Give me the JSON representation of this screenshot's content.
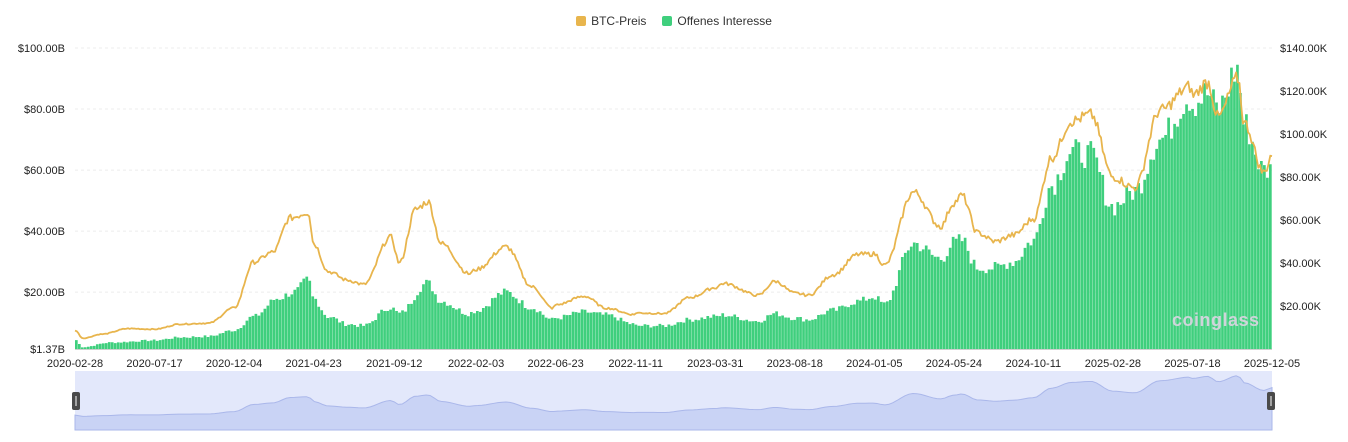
{
  "chart_data": {
    "type": "area",
    "legend": {
      "price_label": "BTC-Preis",
      "oi_label": "Offenes Interesse",
      "price_color": "#E8B54D",
      "oi_color": "#3FCF7D",
      "placement": "top-center"
    },
    "left_axis": {
      "ticks": [
        1.37,
        20,
        40,
        60,
        80,
        100
      ],
      "tick_labels": [
        "$1.37B",
        "$20.00B",
        "$40.00B",
        "$60.00B",
        "$80.00B",
        "$100.00B"
      ],
      "range": [
        1.37,
        100
      ],
      "unit": "USD billions"
    },
    "right_axis": {
      "ticks": [
        20,
        40,
        60,
        80,
        100,
        120,
        140
      ],
      "tick_labels": [
        "$20.00K",
        "$40.00K",
        "$60.00K",
        "$80.00K",
        "$100.00K",
        "$120.00K",
        "$140.00K"
      ],
      "range": [
        0,
        140
      ],
      "unit": "USD thousands"
    },
    "x_tick_labels": [
      "2020-02-28",
      "2020-07-17",
      "2020-12-04",
      "2021-04-23",
      "2021-09-12",
      "2022-02-03",
      "2022-06-23",
      "2022-11-11",
      "2023-03-31",
      "2023-08-18",
      "2024-01-05",
      "2024-05-24",
      "2024-10-11",
      "2025-02-28",
      "2025-07-18",
      "2025-12-05"
    ],
    "x_range": [
      "2020-02-28",
      "2025-12-05"
    ],
    "grid": true,
    "watermark": "coinglass",
    "series": [
      {
        "name": "BTC-Preis",
        "axis": "right",
        "kind": "line",
        "points": [
          [
            "2020-02-28",
            8.7
          ],
          [
            "2020-03-13",
            5.0
          ],
          [
            "2020-04-15",
            6.9
          ],
          [
            "2020-06-01",
            9.5
          ],
          [
            "2020-07-17",
            9.2
          ],
          [
            "2020-09-01",
            11.6
          ],
          [
            "2020-10-20",
            12.0
          ],
          [
            "2020-12-04",
            19.1
          ],
          [
            "2021-01-08",
            40.5
          ],
          [
            "2021-02-10",
            45.0
          ],
          [
            "2021-03-13",
            61.0
          ],
          [
            "2021-04-14",
            63.5
          ],
          [
            "2021-04-23",
            49.0
          ],
          [
            "2021-05-19",
            36.0
          ],
          [
            "2021-06-22",
            32.0
          ],
          [
            "2021-07-20",
            30.0
          ],
          [
            "2021-09-06",
            52.0
          ],
          [
            "2021-09-21",
            40.0
          ],
          [
            "2021-10-20",
            65.0
          ],
          [
            "2021-11-10",
            68.5
          ],
          [
            "2021-12-04",
            49.0
          ],
          [
            "2022-01-22",
            35.0
          ],
          [
            "2022-02-03",
            37.0
          ],
          [
            "2022-03-28",
            47.5
          ],
          [
            "2022-05-12",
            29.0
          ],
          [
            "2022-06-18",
            19.0
          ],
          [
            "2022-06-23",
            20.5
          ],
          [
            "2022-08-13",
            24.5
          ],
          [
            "2022-09-20",
            19.0
          ],
          [
            "2022-11-09",
            16.0
          ],
          [
            "2022-11-11",
            16.8
          ],
          [
            "2022-12-31",
            16.5
          ],
          [
            "2023-02-15",
            24.0
          ],
          [
            "2023-03-31",
            28.5
          ],
          [
            "2023-04-14",
            30.5
          ],
          [
            "2023-06-15",
            25.0
          ],
          [
            "2023-07-14",
            31.5
          ],
          [
            "2023-08-18",
            26.0
          ],
          [
            "2023-09-11",
            25.0
          ],
          [
            "2023-10-24",
            34.5
          ],
          [
            "2023-12-08",
            44.0
          ],
          [
            "2024-01-05",
            44.2
          ],
          [
            "2024-01-23",
            39.0
          ],
          [
            "2024-03-14",
            73.0
          ],
          [
            "2024-05-01",
            57.0
          ],
          [
            "2024-05-24",
            68.0
          ],
          [
            "2024-06-07",
            71.5
          ],
          [
            "2024-07-05",
            54.0
          ],
          [
            "2024-08-05",
            50.0
          ],
          [
            "2024-09-06",
            53.0
          ],
          [
            "2024-10-11",
            60.5
          ],
          [
            "2024-11-12",
            89.0
          ],
          [
            "2024-12-17",
            106.0
          ],
          [
            "2025-01-20",
            109.0
          ],
          [
            "2025-02-28",
            80.0
          ],
          [
            "2025-04-07",
            75.0
          ],
          [
            "2025-05-22",
            111.0
          ],
          [
            "2025-07-14",
            122.0
          ],
          [
            "2025-07-18",
            118.0
          ],
          [
            "2025-08-14",
            124.0
          ],
          [
            "2025-09-01",
            108.0
          ],
          [
            "2025-10-06",
            126.0
          ],
          [
            "2025-10-17",
            105.0
          ],
          [
            "2025-11-21",
            82.0
          ],
          [
            "2025-12-05",
            90.5
          ]
        ]
      },
      {
        "name": "Offenes Interesse",
        "axis": "left",
        "kind": "bar-area",
        "points": [
          [
            "2020-02-28",
            4.5
          ],
          [
            "2020-03-13",
            2.0
          ],
          [
            "2020-05-01",
            3.5
          ],
          [
            "2020-07-17",
            4.2
          ],
          [
            "2020-09-01",
            5.2
          ],
          [
            "2020-10-20",
            5.5
          ],
          [
            "2020-12-04",
            7.5
          ],
          [
            "2021-01-08",
            12.0
          ],
          [
            "2021-02-20",
            18.0
          ],
          [
            "2021-03-20",
            20.0
          ],
          [
            "2021-04-14",
            24.0
          ],
          [
            "2021-04-23",
            18.0
          ],
          [
            "2021-05-19",
            12.0
          ],
          [
            "2021-06-22",
            9.5
          ],
          [
            "2021-07-20",
            9.0
          ],
          [
            "2021-09-06",
            15.0
          ],
          [
            "2021-09-21",
            13.0
          ],
          [
            "2021-11-10",
            23.0
          ],
          [
            "2021-12-04",
            17.0
          ],
          [
            "2022-01-22",
            13.0
          ],
          [
            "2022-02-03",
            14.0
          ],
          [
            "2022-03-28",
            20.0
          ],
          [
            "2022-05-12",
            15.0
          ],
          [
            "2022-06-18",
            11.0
          ],
          [
            "2022-06-23",
            11.5
          ],
          [
            "2022-08-13",
            13.5
          ],
          [
            "2022-09-20",
            12.5
          ],
          [
            "2022-11-09",
            9.5
          ],
          [
            "2022-11-11",
            9.0
          ],
          [
            "2022-12-31",
            9.0
          ],
          [
            "2023-02-15",
            11.0
          ],
          [
            "2023-03-31",
            12.0
          ],
          [
            "2023-04-14",
            12.5
          ],
          [
            "2023-06-15",
            10.5
          ],
          [
            "2023-07-14",
            13.0
          ],
          [
            "2023-08-18",
            11.5
          ],
          [
            "2023-09-11",
            11.0
          ],
          [
            "2023-10-24",
            14.0
          ],
          [
            "2023-12-08",
            17.0
          ],
          [
            "2024-01-05",
            18.5
          ],
          [
            "2024-01-23",
            16.0
          ],
          [
            "2024-03-14",
            36.0
          ],
          [
            "2024-05-01",
            31.0
          ],
          [
            "2024-05-24",
            36.0
          ],
          [
            "2024-06-07",
            37.0
          ],
          [
            "2024-07-05",
            28.0
          ],
          [
            "2024-08-05",
            28.0
          ],
          [
            "2024-09-06",
            30.0
          ],
          [
            "2024-10-11",
            37.0
          ],
          [
            "2024-11-12",
            55.0
          ],
          [
            "2024-12-17",
            66.0
          ],
          [
            "2025-01-20",
            65.0
          ],
          [
            "2025-02-28",
            48.0
          ],
          [
            "2025-04-07",
            53.0
          ],
          [
            "2025-05-22",
            70.0
          ],
          [
            "2025-07-14",
            84.0
          ],
          [
            "2025-07-18",
            82.0
          ],
          [
            "2025-08-14",
            85.0
          ],
          [
            "2025-09-01",
            80.0
          ],
          [
            "2025-10-06",
            93.0
          ],
          [
            "2025-10-17",
            75.0
          ],
          [
            "2025-11-21",
            60.0
          ],
          [
            "2025-12-05",
            60.0
          ]
        ]
      }
    ],
    "navigator": {
      "visible": true,
      "range": [
        "2020-02-28",
        "2025-12-05"
      ]
    }
  }
}
